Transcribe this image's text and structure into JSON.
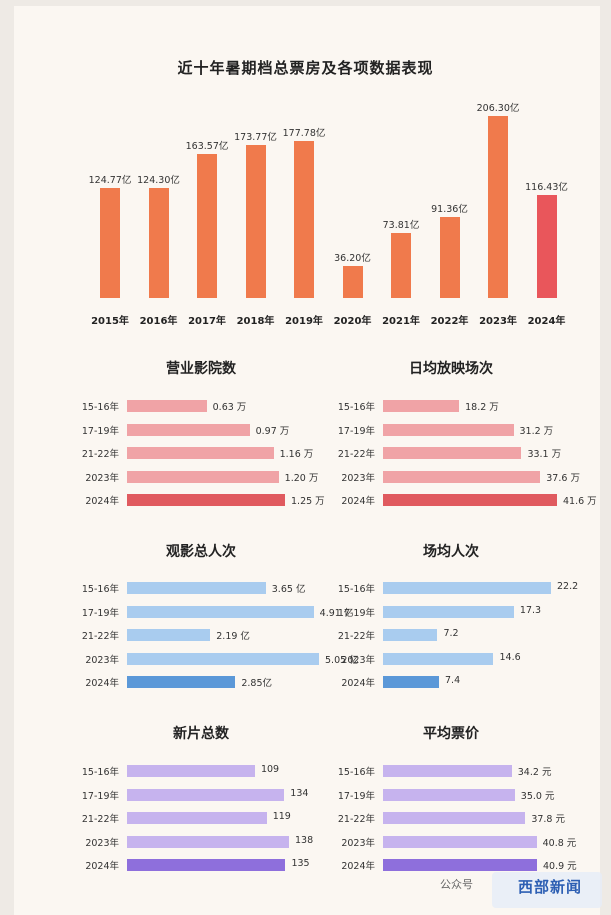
{
  "chart_data": [
    {
      "type": "bar",
      "title": "近十年暑期档总票房及各项数据表现",
      "categories": [
        "2015年",
        "2016年",
        "2017年",
        "2018年",
        "2019年",
        "2020年",
        "2021年",
        "2022年",
        "2023年",
        "2024年"
      ],
      "values": [
        124.77,
        124.3,
        163.57,
        173.77,
        177.78,
        36.2,
        73.81,
        91.36,
        206.3,
        116.43
      ],
      "value_labels": [
        "124.77亿",
        "124.30亿",
        "163.57亿",
        "173.77亿",
        "177.78亿",
        "36.20亿",
        "73.81亿",
        "91.36亿",
        "206.30亿",
        "116.43亿"
      ],
      "ylim": [
        0,
        206.3
      ],
      "colors": {
        "normal": "#f07a4c",
        "highlight": "#e9565b"
      }
    },
    {
      "type": "bar",
      "orientation": "horizontal",
      "title": "营业影院数",
      "categories": [
        "15-16年",
        "17-19年",
        "21-22年",
        "2023年",
        "2024年"
      ],
      "values": [
        0.63,
        0.97,
        1.16,
        1.2,
        1.25
      ],
      "value_labels": [
        "0.63 万",
        "0.97 万",
        "1.16 万",
        "1.20 万",
        "1.25 万"
      ],
      "colors": {
        "normal": "#f0a3a6",
        "highlight": "#e05a5f"
      }
    },
    {
      "type": "bar",
      "orientation": "horizontal",
      "title": "日均放映场次",
      "categories": [
        "15-16年",
        "17-19年",
        "21-22年",
        "2023年",
        "2024年"
      ],
      "values": [
        18.2,
        31.2,
        33.1,
        37.6,
        41.6
      ],
      "value_labels": [
        "18.2 万",
        "31.2 万",
        "33.1 万",
        "37.6 万",
        "41.6 万"
      ],
      "colors": {
        "normal": "#f0a3a6",
        "highlight": "#e05a5f"
      }
    },
    {
      "type": "bar",
      "orientation": "horizontal",
      "title": "观影总人次",
      "categories": [
        "15-16年",
        "17-19年",
        "21-22年",
        "2023年",
        "2024年"
      ],
      "values": [
        3.65,
        4.91,
        2.19,
        5.05,
        2.85
      ],
      "value_labels": [
        "3.65 亿",
        "4.91 亿",
        "2.19 亿",
        "5.05 亿",
        "2.85亿"
      ],
      "colors": {
        "normal": "#a9ccef",
        "highlight": "#5b98d8"
      }
    },
    {
      "type": "bar",
      "orientation": "horizontal",
      "title": "场均人次",
      "categories": [
        "15-16年",
        "17-19年",
        "21-22年",
        "2023年",
        "2024年"
      ],
      "values": [
        22.2,
        17.3,
        7.2,
        14.6,
        7.4
      ],
      "value_labels": [
        "22.2",
        "17.3",
        "7.2",
        "14.6",
        "7.4"
      ],
      "colors": {
        "normal": "#a9ccef",
        "highlight": "#5b98d8"
      }
    },
    {
      "type": "bar",
      "orientation": "horizontal",
      "title": "新片总数",
      "categories": [
        "15-16年",
        "17-19年",
        "21-22年",
        "2023年",
        "2024年"
      ],
      "values": [
        109,
        134,
        119,
        138,
        135
      ],
      "value_labels": [
        "109",
        "134",
        "119",
        "138",
        "135"
      ],
      "colors": {
        "normal": "#c6b3ee",
        "highlight": "#8e6fdc"
      }
    },
    {
      "type": "bar",
      "orientation": "horizontal",
      "title": "平均票价",
      "categories": [
        "15-16年",
        "17-19年",
        "21-22年",
        "2023年",
        "2024年"
      ],
      "values": [
        34.2,
        35.0,
        37.8,
        40.8,
        40.9
      ],
      "value_labels": [
        "34.2 元",
        "35.0 元",
        "37.8 元",
        "40.8 元",
        "40.9 元"
      ],
      "colors": {
        "normal": "#c6b3ee",
        "highlight": "#8e6fdc"
      }
    }
  ],
  "watermark": {
    "text": "公众号",
    "logo_text": "西部新闻"
  }
}
